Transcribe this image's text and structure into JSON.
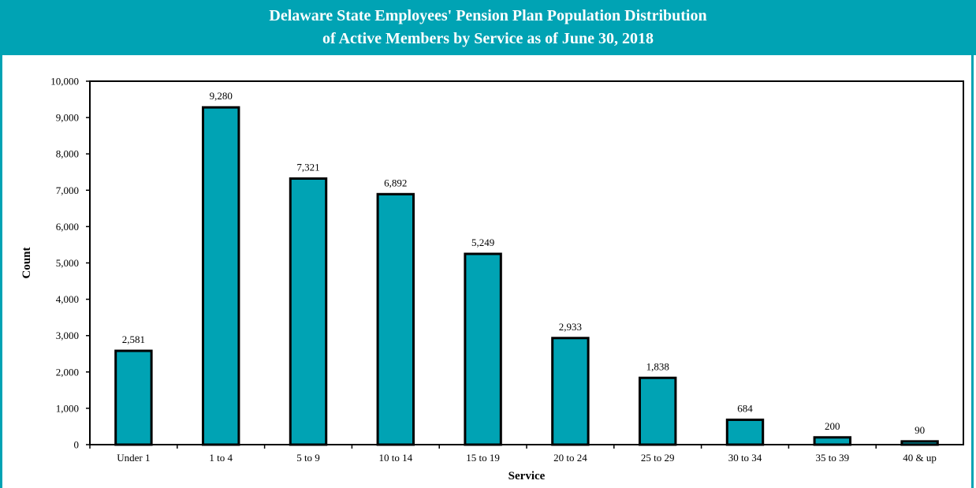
{
  "chart_data": {
    "type": "bar",
    "title_line1": "Delaware State Employees' Pension Plan Population Distribution",
    "title_line2": "of Active Members by Service as of June 30, 2018",
    "xlabel": "Service",
    "ylabel": "Count",
    "categories": [
      "Under 1",
      "1 to 4",
      "5 to 9",
      "10 to 14",
      "15 to 19",
      "20 to 24",
      "25 to 29",
      "30 to 34",
      "35 to 39",
      "40 & up"
    ],
    "values": [
      2581,
      9280,
      7321,
      6892,
      5249,
      2933,
      1838,
      684,
      200,
      90
    ],
    "data_labels": [
      "2,581",
      "9,280",
      "7,321",
      "6,892",
      "5,249",
      "2,933",
      "1,838",
      "684",
      "200",
      "90"
    ],
    "ylim": [
      0,
      10000
    ],
    "yticks": [
      0,
      1000,
      2000,
      3000,
      4000,
      5000,
      6000,
      7000,
      8000,
      9000,
      10000
    ],
    "ytick_labels": [
      "0",
      "1,000",
      "2,000",
      "3,000",
      "4,000",
      "5,000",
      "6,000",
      "7,000",
      "8,000",
      "9,000",
      "10,000"
    ],
    "grid": false,
    "legend": "none",
    "colors": {
      "bar": "#00a3b4",
      "bar_edge": "#000000",
      "banner": "#00a3b4"
    }
  }
}
